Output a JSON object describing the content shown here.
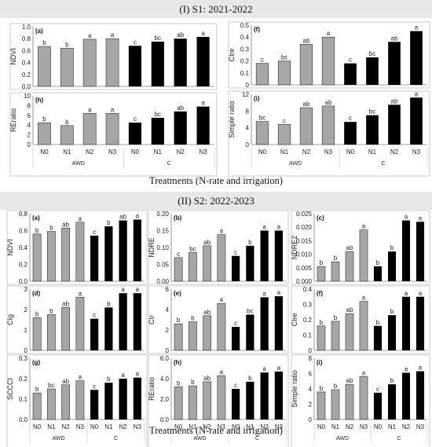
{
  "sections": [
    {
      "title": "(I) S1: 2021-2022",
      "footer": "Treatments (N-rate and irrigation)"
    },
    {
      "title": "(II) S2: 2022-2023",
      "footer": "Treatments (N-rate and irrigation)"
    }
  ],
  "colors": {
    "AWD": "#a6a6a6",
    "C": "#000000"
  },
  "groups": [
    "AWD",
    "C"
  ],
  "chart_data": [
    {
      "panel": "(a)",
      "section": "S1",
      "type": "bar",
      "ylabel": "NDVI",
      "categories": [
        "N0",
        "N1",
        "N2",
        "N3",
        "N0",
        "N1",
        "N2",
        "N3"
      ],
      "values": [
        0.67,
        0.64,
        0.79,
        0.8,
        0.68,
        0.75,
        0.8,
        0.83
      ],
      "letters": [
        "b",
        "b",
        "a",
        "a",
        "c",
        "bc",
        "ab",
        "a"
      ],
      "ylim": [
        0,
        1.0
      ],
      "yticks": [
        "0.0",
        "0.2",
        "0.4",
        "0.6",
        "0.8",
        "1.0"
      ],
      "groups": [
        "AWD",
        "C"
      ]
    },
    {
      "panel": "(h)",
      "section": "S1",
      "type": "bar",
      "ylabel": "REratio",
      "categories": [
        "N0",
        "N1",
        "N2",
        "N3",
        "N0",
        "N1",
        "N2",
        "N3"
      ],
      "values": [
        4.5,
        3.9,
        6.4,
        6.4,
        4.5,
        5.5,
        6.8,
        7.8
      ],
      "letters": [
        "b",
        "b",
        "a",
        "a",
        "c",
        "bc",
        "ab",
        "a"
      ],
      "ylim": [
        0,
        10
      ],
      "yticks": [
        "0",
        "2",
        "4",
        "6",
        "8",
        "10"
      ],
      "groups": [
        "AWD",
        "C"
      ]
    },
    {
      "panel": "(f)",
      "section": "S1",
      "type": "bar",
      "ylabel": "CIre",
      "categories": [
        "N0",
        "N1",
        "N2",
        "N3",
        "N0",
        "N1",
        "N2",
        "N3"
      ],
      "values": [
        0.18,
        0.2,
        0.34,
        0.4,
        0.18,
        0.23,
        0.36,
        0.45
      ],
      "letters": [
        "c",
        "bc",
        "ab",
        "a",
        "c",
        "bc",
        "ab",
        "a"
      ],
      "ylim": [
        0,
        0.5
      ],
      "yticks": [
        "0",
        "0.1",
        "0.2",
        "0.3",
        "0.4",
        "0.5"
      ],
      "groups": [
        "AWD",
        "C"
      ]
    },
    {
      "panel": "(i)",
      "section": "S1",
      "type": "bar",
      "ylabel": "Simple ratio",
      "categories": [
        "N0",
        "N1",
        "N2",
        "N3",
        "N0",
        "N1",
        "N2",
        "N3"
      ],
      "values": [
        5.5,
        4.8,
        8.8,
        9.2,
        5.4,
        7.0,
        9.5,
        11.2
      ],
      "letters": [
        "bc",
        "c",
        "ab",
        "ab",
        "c",
        "bc",
        "ab",
        "a"
      ],
      "ylim": [
        0,
        12
      ],
      "yticks": [
        "0",
        "4",
        "8",
        "12"
      ],
      "groups": [
        "AWD",
        "C"
      ]
    },
    {
      "panel": "(a)",
      "section": "S2",
      "type": "bar",
      "ylabel": "NDVI",
      "categories": [
        "N0",
        "N1",
        "N2",
        "N3",
        "N0",
        "N1",
        "N2",
        "N3"
      ],
      "values": [
        0.56,
        0.59,
        0.63,
        0.7,
        0.54,
        0.65,
        0.72,
        0.73
      ],
      "letters": [
        "b",
        "b",
        "ab",
        "a",
        "c",
        "b",
        "ab",
        "a"
      ],
      "ylim": [
        0,
        0.8
      ],
      "yticks": [
        "0.0",
        "0.2",
        "0.4",
        "0.6",
        "0.8"
      ],
      "groups": [
        "AWD",
        "C"
      ]
    },
    {
      "panel": "(b)",
      "section": "S2",
      "type": "bar",
      "ylabel": "NDRE",
      "categories": [
        "N0",
        "N1",
        "N2",
        "N3",
        "N0",
        "N1",
        "N2",
        "N3"
      ],
      "values": [
        0.07,
        0.085,
        0.105,
        0.138,
        0.075,
        0.105,
        0.15,
        0.15
      ],
      "letters": [
        "c",
        "bc",
        "ab",
        "a",
        "c",
        "b",
        "a",
        "a"
      ],
      "ylim": [
        0,
        0.2
      ],
      "yticks": [
        "0.00",
        "0.05",
        "0.10",
        "0.15",
        "0.20"
      ],
      "groups": [
        "AWD",
        "C"
      ]
    },
    {
      "panel": "(c)",
      "section": "S2",
      "type": "bar",
      "ylabel": "NDRE2",
      "categories": [
        "N0",
        "N1",
        "N2",
        "N3",
        "N0",
        "N1",
        "N2",
        "N3"
      ],
      "values": [
        0.0055,
        0.0072,
        0.011,
        0.019,
        0.0055,
        0.011,
        0.0225,
        0.022
      ],
      "letters": [
        "b",
        "b",
        "ab",
        "a",
        "b",
        "b",
        "a",
        "a"
      ],
      "ylim": [
        0,
        0.025
      ],
      "yticks": [
        "0.000",
        "0.005",
        "0.010",
        "0.015",
        "0.020",
        "0.025"
      ],
      "groups": [
        "AWD",
        "C"
      ]
    },
    {
      "panel": "(d)",
      "section": "S2",
      "type": "bar",
      "ylabel": "CIg",
      "categories": [
        "N0",
        "N1",
        "N2",
        "N3",
        "N0",
        "N1",
        "N2",
        "N3"
      ],
      "values": [
        1.6,
        1.75,
        2.1,
        2.6,
        1.55,
        2.1,
        2.8,
        2.8
      ],
      "letters": [
        "b",
        "b",
        "ab",
        "a",
        "c",
        "b",
        "a",
        "a"
      ],
      "ylim": [
        0,
        3
      ],
      "yticks": [
        "0",
        "1",
        "2",
        "3"
      ],
      "groups": [
        "AWD",
        "C"
      ]
    },
    {
      "panel": "(e)",
      "section": "S2",
      "type": "bar",
      "ylabel": "CIr",
      "categories": [
        "N0",
        "N1",
        "N2",
        "N3",
        "N0",
        "N1",
        "N2",
        "N3"
      ],
      "values": [
        2.6,
        2.8,
        3.4,
        4.6,
        2.3,
        3.5,
        5.2,
        5.3
      ],
      "letters": [
        "b",
        "b",
        "ab",
        "a",
        "c",
        "bc",
        "a",
        "a"
      ],
      "ylim": [
        0,
        6
      ],
      "yticks": [
        "0",
        "2",
        "4",
        "6"
      ],
      "groups": [
        "AWD",
        "C"
      ]
    },
    {
      "panel": "(f)",
      "section": "S2",
      "type": "bar",
      "ylabel": "CIre",
      "categories": [
        "N0",
        "N1",
        "N2",
        "N3",
        "N0",
        "N1",
        "N2",
        "N3"
      ],
      "values": [
        0.16,
        0.19,
        0.24,
        0.32,
        0.16,
        0.23,
        0.35,
        0.35
      ],
      "letters": [
        "b",
        "b",
        "ab",
        "a",
        "b",
        "b",
        "a",
        "a"
      ],
      "ylim": [
        0,
        0.4
      ],
      "yticks": [
        "0",
        "0.1",
        "0.2",
        "0.3",
        "0.4"
      ],
      "groups": [
        "AWD",
        "C"
      ]
    },
    {
      "panel": "(g)",
      "section": "S2",
      "type": "bar",
      "ylabel": "SCCCI",
      "categories": [
        "N0",
        "N1",
        "N2",
        "N3",
        "N0",
        "N1",
        "N2",
        "N3"
      ],
      "values": [
        0.13,
        0.15,
        0.17,
        0.19,
        0.145,
        0.18,
        0.2,
        0.205
      ],
      "letters": [
        "b",
        "bc",
        "ab",
        "a",
        "c",
        "b",
        "a",
        "a"
      ],
      "ylim": [
        0,
        0.3
      ],
      "yticks": [
        "0.0",
        "0.1",
        "0.2",
        "0.3"
      ],
      "groups": [
        "AWD",
        "C"
      ]
    },
    {
      "panel": "(h)",
      "section": "S2",
      "type": "bar",
      "ylabel": "REratio",
      "categories": [
        "N0",
        "N1",
        "N2",
        "N3",
        "N0",
        "N1",
        "N2",
        "N3"
      ],
      "values": [
        3.2,
        3.3,
        3.7,
        4.3,
        3.0,
        3.7,
        4.6,
        4.7
      ],
      "letters": [
        "b",
        "b",
        "ab",
        "a",
        "c",
        "b",
        "a",
        "a"
      ],
      "ylim": [
        0,
        6
      ],
      "yticks": [
        "0.0",
        "2.0",
        "4.0",
        "6.0"
      ],
      "groups": [
        "AWD",
        "C"
      ]
    },
    {
      "panel": "(i)",
      "section": "S2",
      "type": "bar",
      "ylabel": "Simple ratio",
      "categories": [
        "N0",
        "N1",
        "N2",
        "N3",
        "N0",
        "N1",
        "N2",
        "N3"
      ],
      "values": [
        3.6,
        3.9,
        4.6,
        5.6,
        3.5,
        4.6,
        6.1,
        6.3
      ],
      "letters": [
        "b",
        "b",
        "ab",
        "a",
        "c",
        "b",
        "a",
        "a"
      ],
      "ylim": [
        0,
        8
      ],
      "yticks": [
        "0",
        "2",
        "4",
        "6",
        "8"
      ],
      "groups": [
        "AWD",
        "C"
      ]
    }
  ]
}
